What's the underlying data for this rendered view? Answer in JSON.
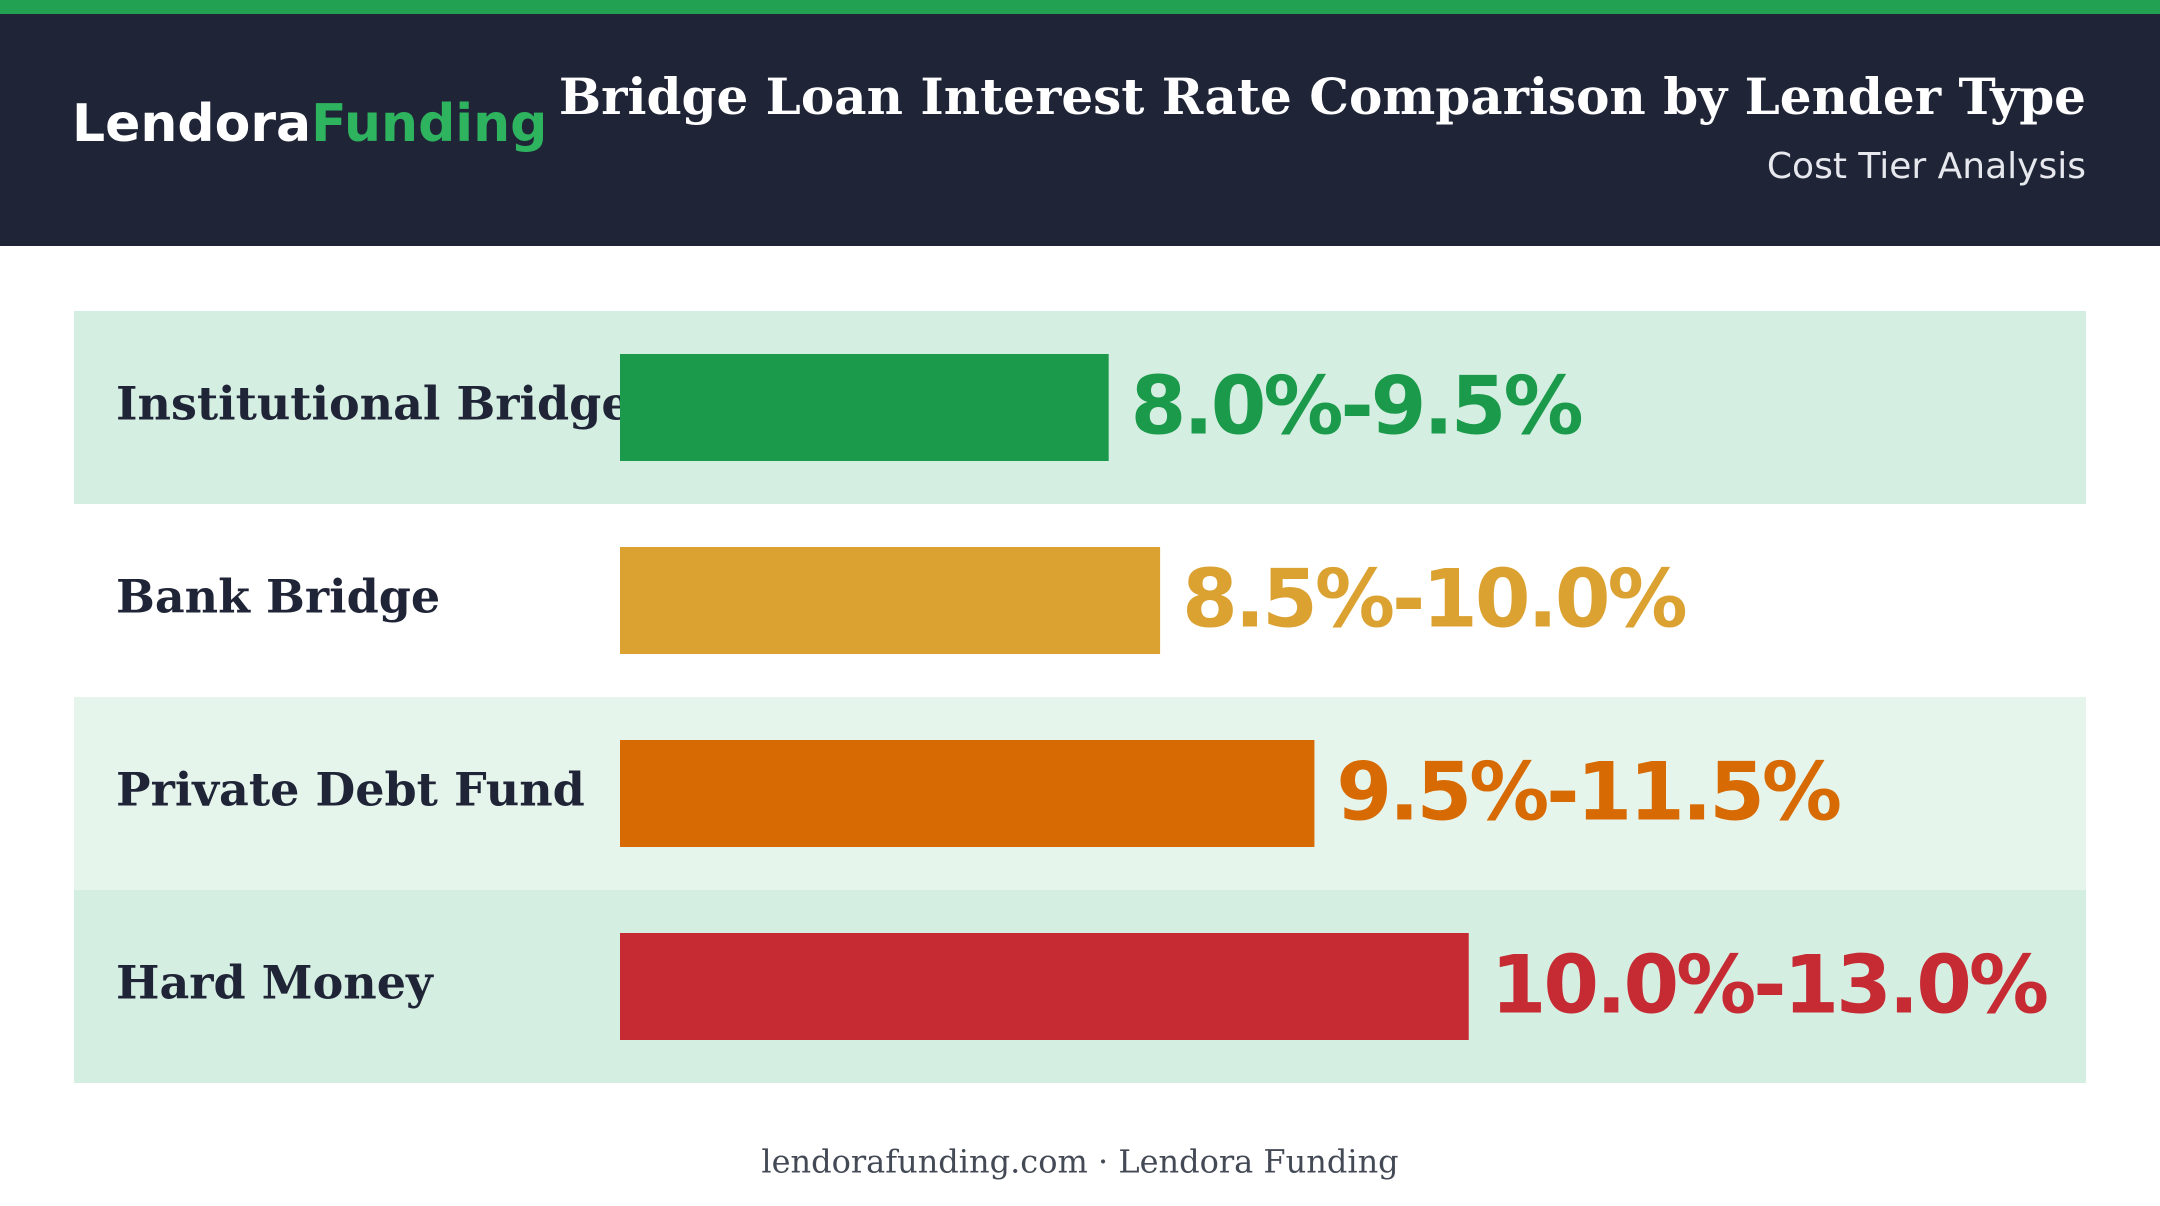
{
  "header": {
    "logo_primary": "Lendora",
    "logo_accent": "Funding"
  },
  "chart_data": {
    "type": "range_bar",
    "title": "Bridge Loan Interest Rate Comparison by Lender Type",
    "subtitle": "Cost Tier Analysis",
    "categories": [
      "Institutional Bridge",
      "Bank Bridge",
      "Private Debt Fund",
      "Hard Money"
    ],
    "low": [
      8.0,
      8.5,
      9.5,
      10.0
    ],
    "values": [
      9.5,
      10.0,
      11.5,
      13.0
    ],
    "value_labels": [
      "8.0%-9.5%",
      "8.5%-10.0%",
      "9.5%-11.5%",
      "10.0%-13.0%"
    ],
    "colors": [
      "#1a9a4a",
      "#dba232",
      "#d76a03",
      "#c62a32"
    ],
    "xlim": [
      4.75,
      19
    ]
  },
  "footer": "lendorafunding.com · Lendora Funding"
}
